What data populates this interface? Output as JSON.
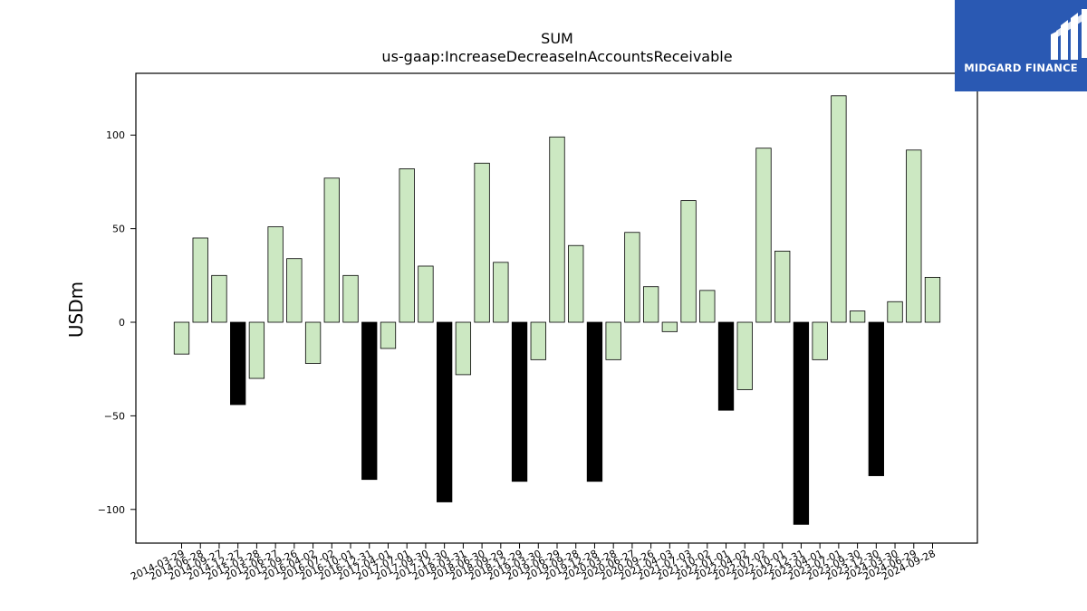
{
  "brand": {
    "name": "MIDGARD FINANCE",
    "logo_color": "#2a59b3",
    "icon": "midgard-m-logo"
  },
  "chart_data": {
    "type": "bar",
    "title": "SUM",
    "subtitle": "us-gaap:IncreaseDecreaseInAccountsReceivable",
    "xlabel": "",
    "ylabel": "USDm",
    "ylim": [
      -118,
      133
    ],
    "yticks": [
      100,
      50,
      0,
      -50,
      -100
    ],
    "grid": false,
    "colors": {
      "quarterly": "#cce8c2",
      "annual": "#000000",
      "edge": "#000000"
    },
    "categories": [
      "2014-03-29",
      "2014-06-28",
      "2014-09-27",
      "2014-12-27",
      "2015-03-28",
      "2015-06-27",
      "2015-09-26",
      "2016-04-02",
      "2016-07-02",
      "2016-10-01",
      "2016-12-31",
      "2017-04-01",
      "2017-07-01",
      "2017-09-30",
      "2017-12-30",
      "2018-03-31",
      "2018-06-30",
      "2018-09-29",
      "2018-12-29",
      "2019-03-30",
      "2019-06-29",
      "2019-09-28",
      "2019-12-28",
      "2020-03-28",
      "2020-06-27",
      "2020-09-26",
      "2021-04-03",
      "2021-07-03",
      "2021-10-02",
      "2022-01-01",
      "2022-04-02",
      "2022-07-02",
      "2022-10-01",
      "2022-12-31",
      "2023-04-01",
      "2023-07-01",
      "2023-09-30",
      "2023-12-30",
      "2024-03-30",
      "2024-06-29",
      "2024-09-28"
    ],
    "values": [
      -17,
      45,
      25,
      -44,
      -30,
      51,
      34,
      -22,
      77,
      25,
      -84,
      -14,
      82,
      30,
      -96,
      -28,
      85,
      32,
      -85,
      -20,
      99,
      41,
      -85,
      -20,
      48,
      19,
      -5,
      65,
      17,
      -47,
      -36,
      93,
      38,
      -108,
      -20,
      121,
      6,
      -82,
      11,
      92,
      24
    ],
    "highlight": [
      false,
      false,
      false,
      true,
      false,
      false,
      false,
      false,
      false,
      false,
      true,
      false,
      false,
      false,
      true,
      false,
      false,
      false,
      true,
      false,
      false,
      false,
      true,
      false,
      false,
      false,
      false,
      false,
      false,
      true,
      false,
      false,
      false,
      true,
      false,
      false,
      false,
      true,
      false,
      false,
      false
    ]
  }
}
